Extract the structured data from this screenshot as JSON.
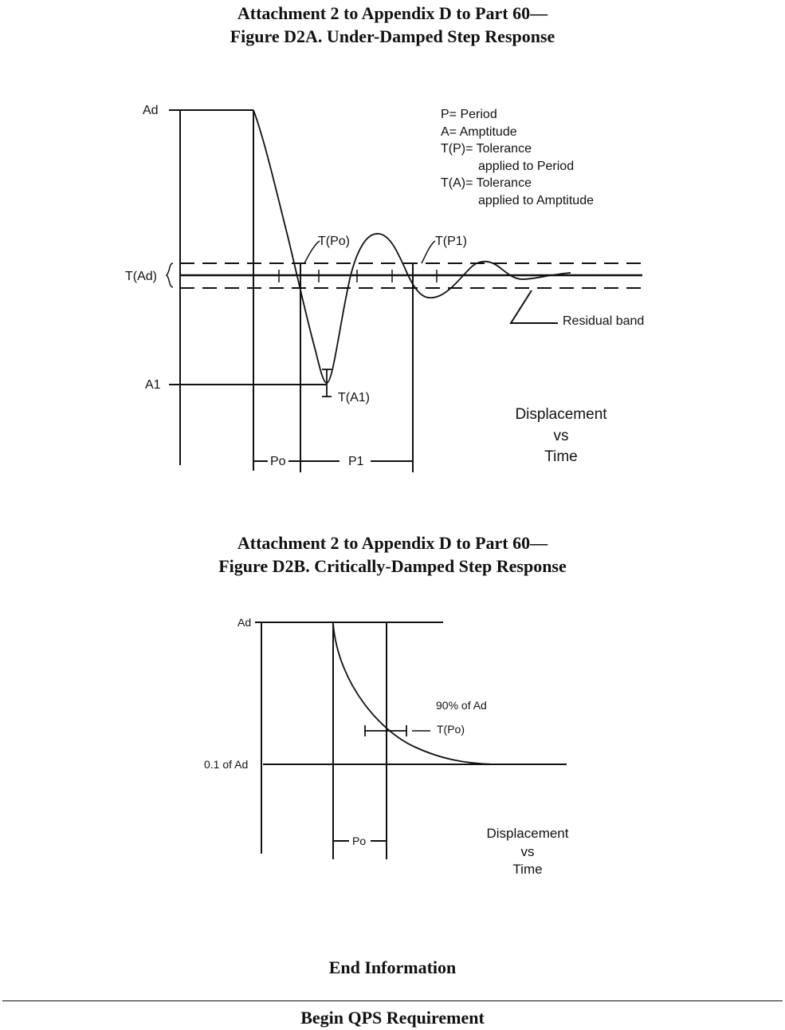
{
  "figure_a": {
    "heading_line1": "Attachment 2 to Appendix D to Part 60—",
    "heading_line2": "Figure D2A.  Under-Damped Step Response",
    "labels": {
      "ad": "Ad",
      "a1": "A1",
      "t_ad": "T(Ad)",
      "t_po": "T(Po)",
      "t_p1": "T(P1)",
      "t_a1": "T(A1)",
      "po": "Po",
      "p1": "P1",
      "residual_band": "Residual band"
    },
    "legend": [
      "P= Period",
      "A= Amptitude",
      "T(P)= Tolerance",
      "applied to Period",
      "T(A)= Tolerance",
      "applied to Amptitude"
    ],
    "caption": [
      "Displacement",
      "vs",
      "Time"
    ]
  },
  "figure_b": {
    "heading_line1": "Attachment 2 to Appendix D to Part 60—",
    "heading_line2": "Figure D2B. Critically-Damped Step Response",
    "labels": {
      "ad": "Ad",
      "tenth_ad": "0.1 of Ad",
      "ninety_pct": "90% of Ad",
      "t_po": "T(Po)",
      "po": "Po"
    },
    "caption": [
      "Displacement",
      "vs",
      "Time"
    ]
  },
  "footer": {
    "end_info": "End Information",
    "begin_qps": "Begin QPS Requirement"
  }
}
